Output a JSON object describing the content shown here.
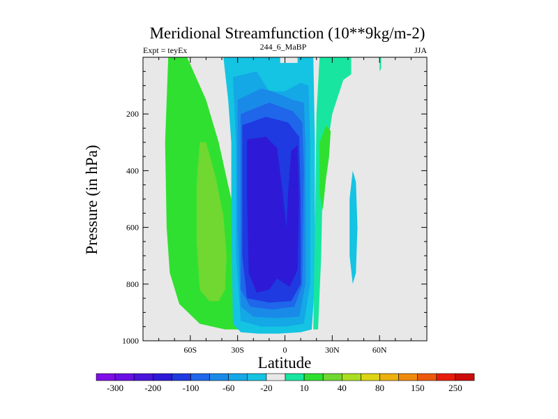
{
  "chart_data": {
    "type": "contour",
    "title": "Meridional Streamfunction (10**9kg/m-2)",
    "subtitle_left": "Expt = teyEx",
    "subtitle_center": "244_6_MaBP",
    "subtitle_right": "JJA",
    "xlabel": "Latitude",
    "ylabel": "Pressure (in hPa)",
    "xlim": [
      -90,
      90
    ],
    "ylim": [
      0,
      1000
    ],
    "x_ticks": [
      {
        "value": -60,
        "label": "60S"
      },
      {
        "value": -30,
        "label": "30S"
      },
      {
        "value": 0,
        "label": "0"
      },
      {
        "value": 30,
        "label": "30N"
      },
      {
        "value": 60,
        "label": "60N"
      }
    ],
    "y_ticks": [
      {
        "value": 200,
        "label": "200"
      },
      {
        "value": 400,
        "label": "400"
      },
      {
        "value": 600,
        "label": "600"
      },
      {
        "value": 800,
        "label": "800"
      },
      {
        "value": 1000,
        "label": "1000"
      }
    ],
    "colorbar": {
      "colors": [
        "#7f0ee8",
        "#6a10e4",
        "#4a14dc",
        "#2e1ad6",
        "#1e3ae0",
        "#1f66ea",
        "#1a8ae8",
        "#14a8e6",
        "#14c4e2",
        "#e8e8e8",
        "#18e6a0",
        "#30e030",
        "#70d830",
        "#aade20",
        "#ddd414",
        "#ecb010",
        "#ee8a0e",
        "#ec5a0c",
        "#e81c0c",
        "#cc0c0c"
      ],
      "labels": [
        {
          "boundary": 1,
          "label": "-300"
        },
        {
          "boundary": 3,
          "label": "-200"
        },
        {
          "boundary": 5,
          "label": "-100"
        },
        {
          "boundary": 7,
          "label": "-60"
        },
        {
          "boundary": 9,
          "label": "-20"
        },
        {
          "boundary": 11,
          "label": "10"
        },
        {
          "boundary": 13,
          "label": "40"
        },
        {
          "boundary": 15,
          "label": "80"
        },
        {
          "boundary": 17,
          "label": "150"
        },
        {
          "boundary": 19,
          "label": "250"
        }
      ]
    },
    "regions": [
      {
        "name": "sh-ferrel-outer",
        "fill": "#30e030",
        "points": [
          [
            -74,
            0
          ],
          [
            -62,
            0
          ],
          [
            -50,
            150
          ],
          [
            -42,
            300
          ],
          [
            -34,
            500
          ],
          [
            -29,
            700
          ],
          [
            -27,
            900
          ],
          [
            -28,
            960
          ],
          [
            -38,
            960
          ],
          [
            -54,
            940
          ],
          [
            -67,
            870
          ],
          [
            -73,
            760
          ],
          [
            -75,
            600
          ],
          [
            -76,
            300
          ]
        ]
      },
      {
        "name": "sh-ferrel-core",
        "fill": "#70d830",
        "points": [
          [
            -54,
            300
          ],
          [
            -50,
            300
          ],
          [
            -44,
            420
          ],
          [
            -39,
            560
          ],
          [
            -37,
            700
          ],
          [
            -38,
            820
          ],
          [
            -42,
            860
          ],
          [
            -48,
            860
          ],
          [
            -54,
            820
          ],
          [
            -56,
            650
          ],
          [
            -56,
            450
          ]
        ]
      },
      {
        "name": "hadley-minus10",
        "fill": "#14c4e2",
        "points": [
          [
            -39,
            0
          ],
          [
            -3,
            0
          ],
          [
            -3,
            20
          ],
          [
            8,
            20
          ],
          [
            8,
            0
          ],
          [
            18,
            0
          ],
          [
            19,
            300
          ],
          [
            19,
            600
          ],
          [
            19,
            800
          ],
          [
            17,
            960
          ],
          [
            10,
            970
          ],
          [
            -4,
            975
          ],
          [
            -17,
            975
          ],
          [
            -28,
            970
          ],
          [
            -33,
            940
          ],
          [
            -34,
            600
          ],
          [
            -34,
            300
          ],
          [
            -36,
            150
          ]
        ]
      },
      {
        "name": "hadley-minus20",
        "fill": "#14a8e6",
        "points": [
          [
            -33,
            70
          ],
          [
            -18,
            50
          ],
          [
            -10,
            120
          ],
          [
            0,
            120
          ],
          [
            10,
            90
          ],
          [
            15,
            100
          ],
          [
            16,
            300
          ],
          [
            16,
            800
          ],
          [
            12,
            940
          ],
          [
            0,
            950
          ],
          [
            -15,
            950
          ],
          [
            -28,
            930
          ],
          [
            -31,
            700
          ],
          [
            -31,
            300
          ]
        ]
      },
      {
        "name": "hadley-minus40",
        "fill": "#1a8ae8",
        "points": [
          [
            -30,
            150
          ],
          [
            -15,
            110
          ],
          [
            -8,
            120
          ],
          [
            5,
            150
          ],
          [
            12,
            160
          ],
          [
            13,
            300
          ],
          [
            13,
            800
          ],
          [
            9,
            915
          ],
          [
            -5,
            920
          ],
          [
            -20,
            915
          ],
          [
            -28,
            880
          ],
          [
            -30,
            600
          ],
          [
            -30,
            300
          ]
        ]
      },
      {
        "name": "hadley-minus60",
        "fill": "#1f66ea",
        "points": [
          [
            -28,
            200
          ],
          [
            -10,
            160
          ],
          [
            5,
            190
          ],
          [
            11,
            230
          ],
          [
            12,
            400
          ],
          [
            11,
            800
          ],
          [
            6,
            880
          ],
          [
            -8,
            890
          ],
          [
            -22,
            880
          ],
          [
            -28,
            820
          ],
          [
            -28,
            400
          ]
        ]
      },
      {
        "name": "hadley-minus80",
        "fill": "#1e3ae0",
        "points": [
          [
            -27,
            240
          ],
          [
            -12,
            210
          ],
          [
            2,
            230
          ],
          [
            9,
            280
          ],
          [
            10,
            500
          ],
          [
            10,
            800
          ],
          [
            4,
            860
          ],
          [
            -10,
            865
          ],
          [
            -24,
            850
          ],
          [
            -27,
            700
          ],
          [
            -27,
            400
          ]
        ]
      },
      {
        "name": "hadley-minus100",
        "fill": "#2e1ad6",
        "points": [
          [
            -24,
            290
          ],
          [
            -12,
            280
          ],
          [
            -5,
            320
          ],
          [
            -2,
            450
          ],
          [
            1,
            600
          ],
          [
            2,
            480
          ],
          [
            4,
            330
          ],
          [
            8,
            310
          ],
          [
            9,
            500
          ],
          [
            8,
            750
          ],
          [
            3,
            810
          ],
          [
            -5,
            780
          ],
          [
            -10,
            820
          ],
          [
            -18,
            830
          ],
          [
            -23,
            760
          ],
          [
            -24,
            500
          ]
        ]
      },
      {
        "name": "nh-ferrel",
        "fill": "#18e6a0",
        "points": [
          [
            22,
            0
          ],
          [
            42,
            0
          ],
          [
            42,
            60
          ],
          [
            37,
            80
          ],
          [
            30,
            200
          ],
          [
            24,
            420
          ],
          [
            23,
            700
          ],
          [
            21,
            960
          ],
          [
            18,
            960
          ],
          [
            19,
            600
          ],
          [
            20,
            200
          ]
        ]
      },
      {
        "name": "nh-ferrel-core",
        "fill": "#30e030",
        "points": [
          [
            22,
            300
          ],
          [
            26,
            240
          ],
          [
            29,
            260
          ],
          [
            28,
            350
          ],
          [
            26,
            430
          ],
          [
            24,
            540
          ],
          [
            22,
            480
          ]
        ]
      },
      {
        "name": "nh-cell",
        "fill": "#14c4e2",
        "points": [
          [
            43,
            400
          ],
          [
            45,
            440
          ],
          [
            46,
            600
          ],
          [
            45,
            760
          ],
          [
            43,
            800
          ],
          [
            41,
            700
          ],
          [
            41,
            500
          ]
        ]
      },
      {
        "name": "polar-cell",
        "fill": "#18e6a0",
        "points": [
          [
            60,
            0
          ],
          [
            61,
            0
          ],
          [
            61,
            40
          ],
          [
            60,
            50
          ]
        ]
      }
    ]
  }
}
